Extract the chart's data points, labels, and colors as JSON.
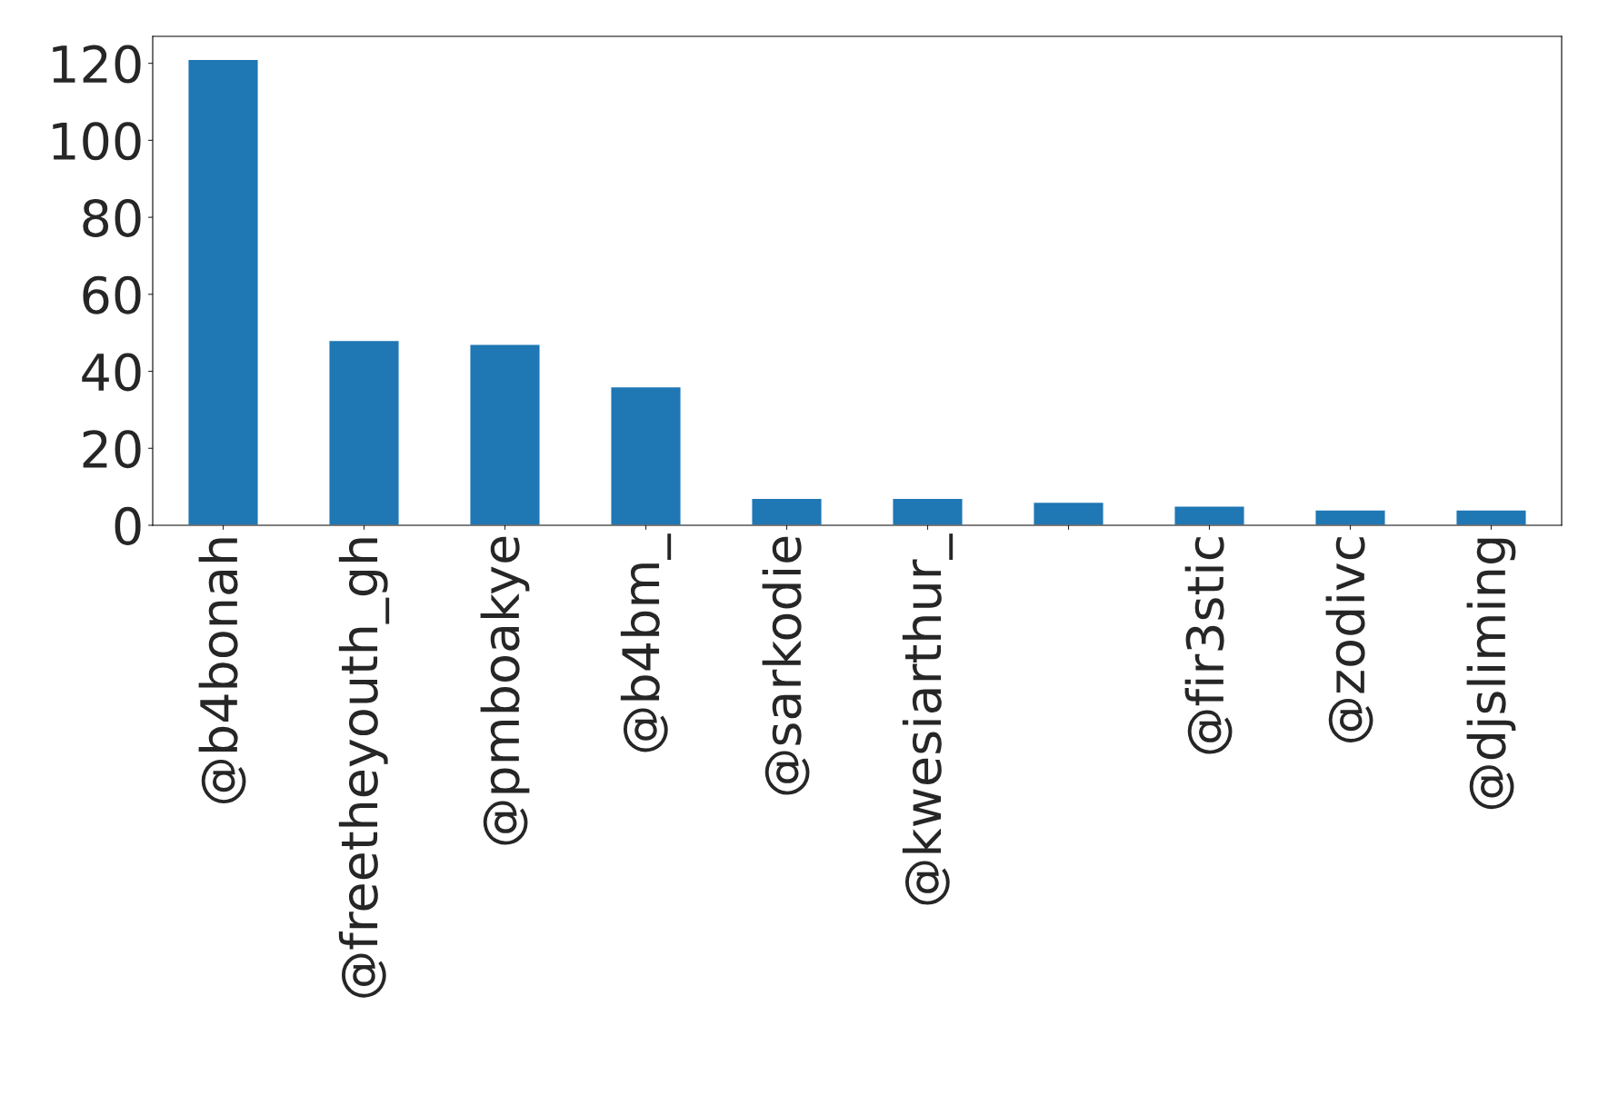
{
  "chart_data": {
    "type": "bar",
    "categories": [
      "@b4bonah",
      "@freetheyouth_gh",
      "@pmboakye",
      "@b4bm_",
      "@sarkodie",
      "@kwesiarthur_",
      null,
      "@fir3stic",
      "@zodivc",
      "@djsliming"
    ],
    "values": [
      121,
      48,
      47,
      36,
      7,
      7,
      6,
      5,
      4,
      4
    ],
    "color": "#1f77b4",
    "ylim": [
      0,
      127
    ],
    "yticks": [
      0,
      20,
      40,
      60,
      80,
      100,
      120
    ],
    "grid": false,
    "legend": false
  }
}
